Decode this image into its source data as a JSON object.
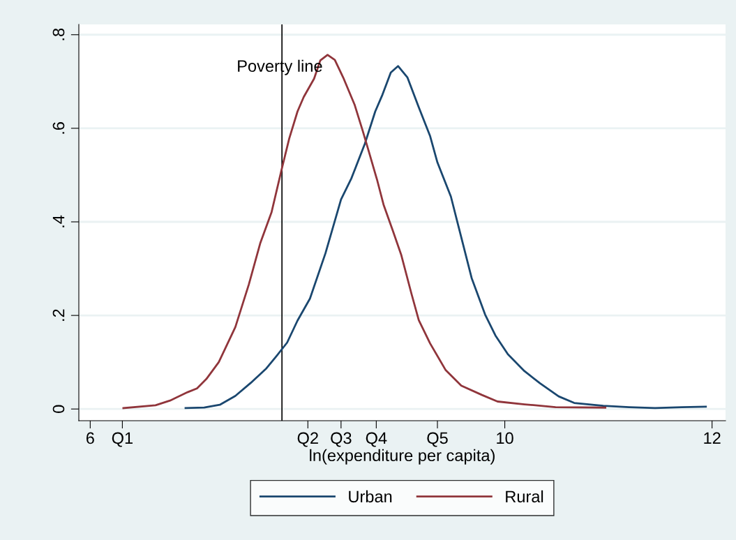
{
  "chart_data": {
    "type": "line",
    "xlabel": "ln(expenditure per capita)",
    "xlim": [
      5.89,
      12.13
    ],
    "ylim": [
      -0.025,
      0.822
    ],
    "xticks": [
      6,
      {
        "value": 6.31,
        "label": "Q1"
      },
      {
        "value": 8.1,
        "label": "Q2"
      },
      {
        "value": 8.42,
        "label": "Q3"
      },
      {
        "value": 8.76,
        "label": "Q4"
      },
      {
        "value": 9.35,
        "label": "Q5"
      },
      10,
      12
    ],
    "yticks": [
      0,
      {
        "value": 0.2,
        "label": ".2"
      },
      {
        "value": 0.4,
        "label": ".4"
      },
      {
        "value": 0.6,
        "label": ".6"
      },
      {
        "value": 0.8,
        "label": ".8"
      }
    ],
    "grid": "y",
    "legend": "bottom",
    "line_style": "solid",
    "marker": "none",
    "ref_lines": [
      {
        "axis": "x",
        "value": 7.85,
        "label": "Poverty line",
        "color": "#000000"
      }
    ],
    "series": [
      {
        "name": "Urban",
        "color": "#1a476f",
        "x": [
          6.92,
          7.1,
          7.25,
          7.4,
          7.55,
          7.7,
          7.8,
          7.9,
          8.0,
          8.12,
          8.27,
          8.42,
          8.52,
          8.65,
          8.75,
          8.82,
          8.9,
          8.97,
          9.06,
          9.17,
          9.28,
          9.35,
          9.48,
          9.55,
          9.68,
          9.81,
          9.91,
          10.03,
          10.19,
          10.34,
          10.52,
          10.67,
          10.95,
          11.2,
          11.45,
          11.71,
          11.94
        ],
        "values": [
          0.002,
          0.003,
          0.009,
          0.028,
          0.056,
          0.087,
          0.114,
          0.142,
          0.189,
          0.236,
          0.333,
          0.448,
          0.493,
          0.567,
          0.636,
          0.672,
          0.719,
          0.733,
          0.709,
          0.645,
          0.583,
          0.527,
          0.454,
          0.393,
          0.28,
          0.202,
          0.157,
          0.117,
          0.081,
          0.055,
          0.027,
          0.013,
          0.007,
          0.004,
          0.002,
          0.004,
          0.005
        ]
      },
      {
        "name": "Rural",
        "color": "#90353b",
        "x": [
          6.32,
          6.63,
          6.77,
          6.94,
          7.03,
          7.12,
          7.24,
          7.4,
          7.53,
          7.64,
          7.75,
          7.85,
          7.92,
          8.0,
          8.06,
          8.16,
          8.22,
          8.29,
          8.36,
          8.44,
          8.55,
          8.63,
          8.69,
          8.77,
          8.83,
          8.92,
          9.0,
          9.1,
          9.17,
          9.28,
          9.43,
          9.58,
          9.78,
          9.93,
          10.19,
          10.49,
          10.97
        ],
        "values": [
          0.002,
          0.008,
          0.018,
          0.036,
          0.044,
          0.064,
          0.1,
          0.175,
          0.266,
          0.354,
          0.421,
          0.515,
          0.578,
          0.636,
          0.667,
          0.706,
          0.745,
          0.757,
          0.746,
          0.709,
          0.651,
          0.594,
          0.549,
          0.488,
          0.437,
          0.381,
          0.33,
          0.246,
          0.19,
          0.14,
          0.083,
          0.05,
          0.03,
          0.016,
          0.01,
          0.004,
          0.003
        ]
      }
    ]
  }
}
